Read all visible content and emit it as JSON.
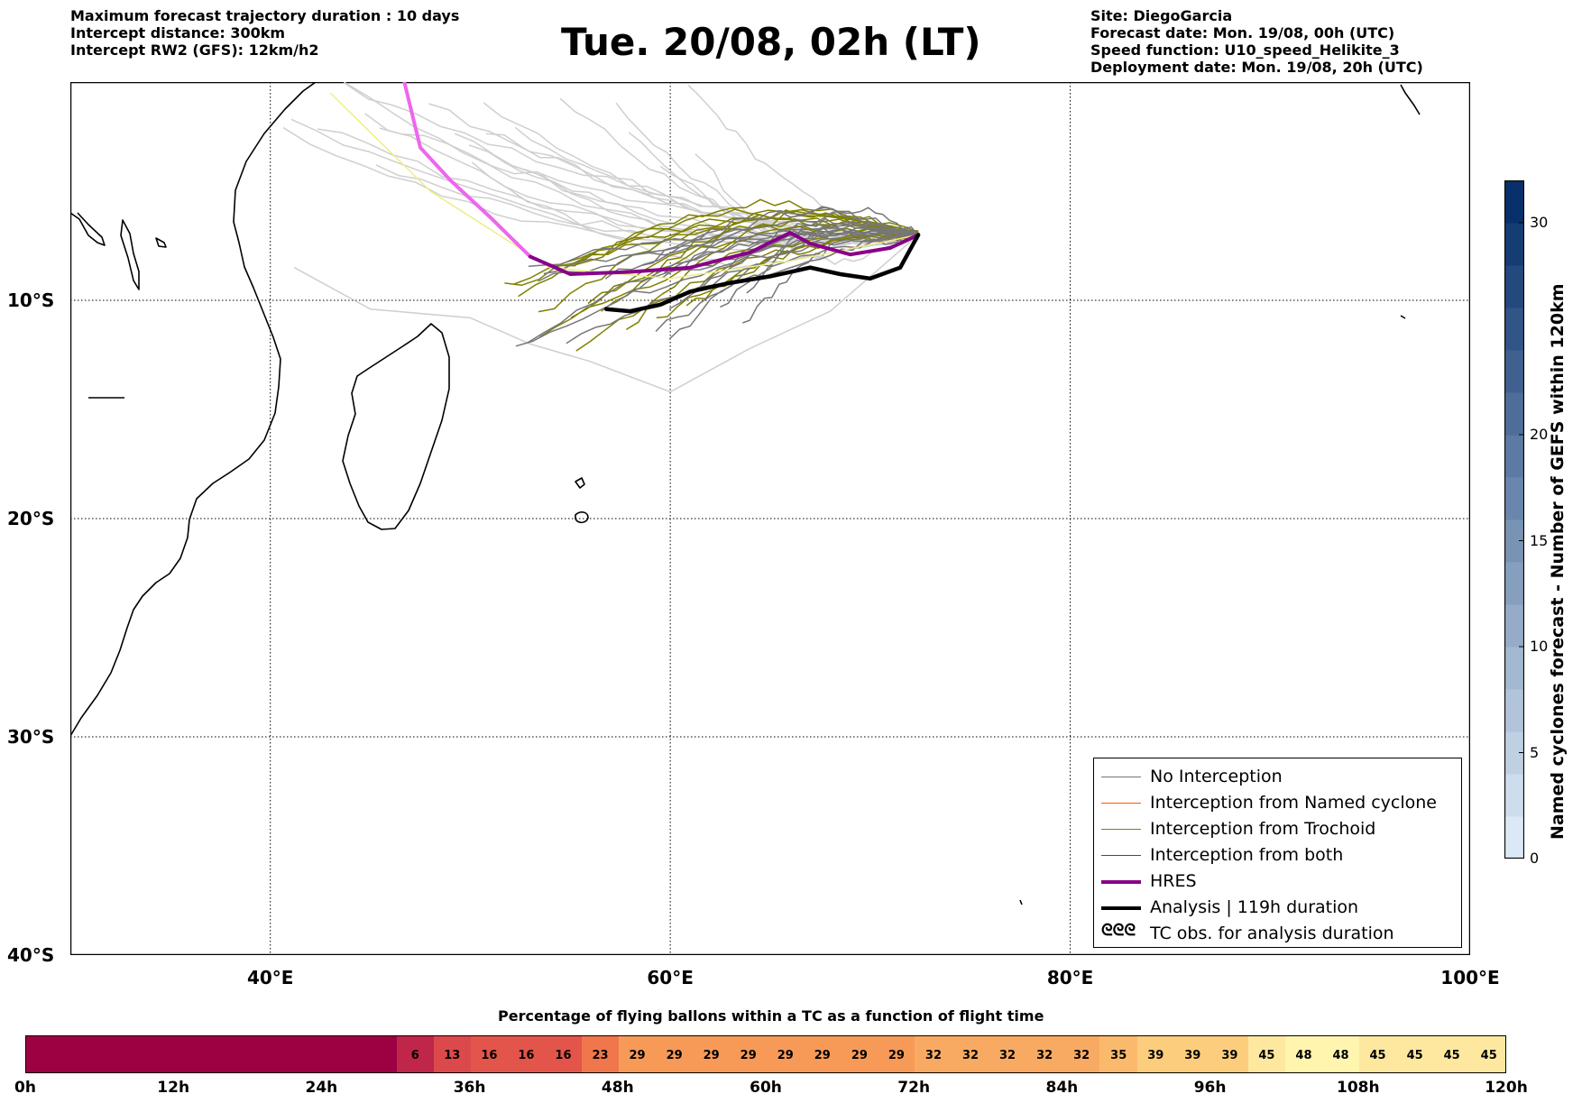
{
  "header": {
    "left": [
      "Maximum forecast trajectory duration : 10 days",
      "Intercept distance: 300km",
      "Intercept RW2 (GFS):  12km/h2"
    ],
    "title": "Tue. 20/08, 02h (LT)",
    "right": [
      "Site: DiegoGarcia",
      "Forecast date: Mon. 19/08, 00h (UTC)",
      "Speed function: U10_speed_Helikite_3",
      "Deployment date: Mon. 19/08, 20h (UTC)"
    ]
  },
  "map": {
    "lon_range": [
      30,
      100
    ],
    "lat_range": [
      -40,
      0
    ],
    "lon_ticks": [
      {
        "value": 40,
        "label": "40°E"
      },
      {
        "value": 60,
        "label": "60°E"
      },
      {
        "value": 80,
        "label": "80°E"
      },
      {
        "value": 100,
        "label": "100°E"
      }
    ],
    "lat_ticks": [
      {
        "value": -10,
        "label": "10°S"
      },
      {
        "value": -20,
        "label": "20°S"
      },
      {
        "value": -30,
        "label": "30°S"
      },
      {
        "value": -40,
        "label": "40°S"
      }
    ],
    "colors": {
      "no_interception": "#777777",
      "light_track": "#cfcfcf",
      "named_cyclone": "#ff5a00",
      "trochoid": "#808000",
      "both": "#008000",
      "hres": "#880088",
      "hres_early": "#ee66ee",
      "analysis": "#000000",
      "yellow_track": "#eeee88"
    },
    "hres_track": [
      [
        46.7,
        0
      ],
      [
        47.5,
        -3
      ],
      [
        49,
        -4.5
      ],
      [
        51,
        -6.2
      ],
      [
        53,
        -8
      ],
      [
        55,
        -8.8
      ],
      [
        58,
        -8.7
      ],
      [
        61,
        -8.5
      ],
      [
        64,
        -7.8
      ],
      [
        66,
        -6.9
      ],
      [
        67,
        -7.4
      ],
      [
        69,
        -7.9
      ],
      [
        71,
        -7.6
      ],
      [
        72.4,
        -7
      ]
    ],
    "analysis_track": [
      [
        56.8,
        -10.4
      ],
      [
        58,
        -10.5
      ],
      [
        59.5,
        -10.2
      ],
      [
        61,
        -9.6
      ],
      [
        63,
        -9.2
      ],
      [
        65,
        -8.9
      ],
      [
        67,
        -8.5
      ],
      [
        68.5,
        -8.8
      ],
      [
        70,
        -9
      ],
      [
        71.5,
        -8.5
      ],
      [
        72.4,
        -7
      ]
    ]
  },
  "legend": {
    "items": [
      {
        "label": "No Interception",
        "style": "no_interception",
        "kind": "line"
      },
      {
        "label": "Interception from Named cyclone",
        "style": "named_cyclone",
        "kind": "line"
      },
      {
        "label": "Interception from Trochoid",
        "style": "trochoid",
        "kind": "line"
      },
      {
        "label": "Interception from both",
        "style": "both",
        "kind": "line"
      },
      {
        "label": "HRES",
        "style": "hres",
        "kind": "thick"
      },
      {
        "label": "Analysis | 119h duration",
        "style": "analysis",
        "kind": "thick"
      },
      {
        "label": "TC obs. for analysis duration",
        "style": "symbol",
        "kind": "symbol",
        "symbol": "ᘓᘓᘓ"
      }
    ]
  },
  "colorbar": {
    "label": "Named cyclones forecast - Number of GEFS within 120km",
    "min": 0,
    "max": 32,
    "ticks": [
      0,
      5,
      10,
      15,
      20,
      30
    ],
    "color_low": "#dbe9f6",
    "color_high": "#08306b"
  },
  "bottom_bar": {
    "title": "Percentage of flying ballons within a TC as a function of flight time",
    "time_ticks": [
      "0h",
      "12h",
      "24h",
      "36h",
      "48h",
      "60h",
      "72h",
      "84h",
      "96h",
      "108h",
      "120h"
    ],
    "empty_hours": 30,
    "cell_hours": 3,
    "values": [
      6,
      13,
      16,
      16,
      16,
      23,
      29,
      29,
      29,
      29,
      29,
      29,
      29,
      29,
      32,
      32,
      32,
      32,
      32,
      35,
      39,
      39,
      39,
      45,
      48,
      48,
      45,
      45,
      45,
      45
    ],
    "empty_color": "#9e0142"
  }
}
